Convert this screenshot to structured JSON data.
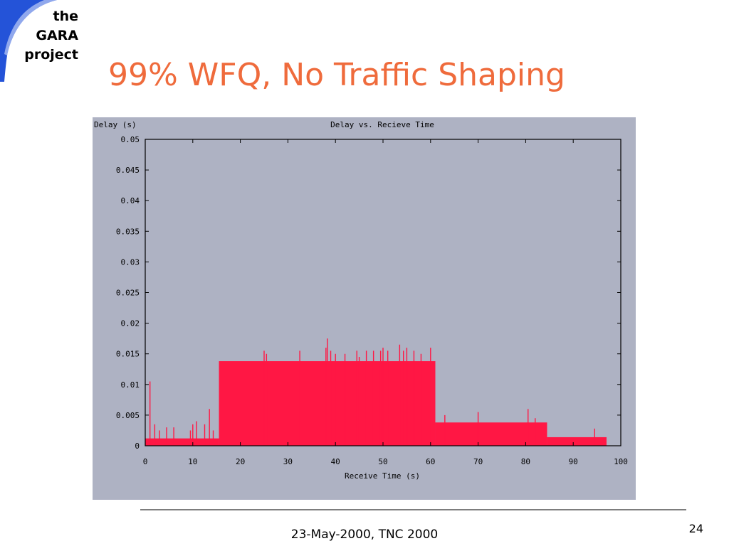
{
  "logo": {
    "line1": "the",
    "line2": "GARA",
    "line3": "project"
  },
  "slide": {
    "title": "99% WFQ, No Traffic Shaping"
  },
  "footer": {
    "text": "23-May-2000, TNC 2000",
    "page": "24"
  },
  "colors": {
    "title": "#ef6b3c",
    "panel": "#aeb2c3",
    "series": "#ff1744",
    "logo_swoosh": "#2453d8"
  },
  "chart_data": {
    "type": "area",
    "title": "Delay vs. Recieve Time",
    "xlabel": "Receive Time (s)",
    "ylabel": "Delay (s)",
    "xlim": [
      0,
      100
    ],
    "ylim": [
      0,
      0.05
    ],
    "xticks": [
      "0",
      "10",
      "20",
      "30",
      "40",
      "50",
      "60",
      "70",
      "80",
      "90",
      "100"
    ],
    "yticks": [
      "0",
      "0.005",
      "0.01",
      "0.015",
      "0.02",
      "0.025",
      "0.03",
      "0.035",
      "0.04",
      "0.045",
      "0.05"
    ],
    "grid": false,
    "series": [
      {
        "segments": [
          {
            "x": [
              0,
              15.5
            ],
            "delay": 0.0012
          },
          {
            "x": [
              15.5,
              61
            ],
            "delay": 0.0138
          },
          {
            "x": [
              61,
              84.5
            ],
            "delay": 0.0038
          },
          {
            "x": [
              84.5,
              97
            ],
            "delay": 0.0014
          }
        ],
        "spikes": [
          {
            "x": 1,
            "delay": 0.0105
          },
          {
            "x": 2,
            "delay": 0.0035
          },
          {
            "x": 3,
            "delay": 0.0025
          },
          {
            "x": 4.5,
            "delay": 0.003
          },
          {
            "x": 6,
            "delay": 0.003
          },
          {
            "x": 9.5,
            "delay": 0.0025
          },
          {
            "x": 10,
            "delay": 0.0035
          },
          {
            "x": 10.8,
            "delay": 0.004
          },
          {
            "x": 12.5,
            "delay": 0.0035
          },
          {
            "x": 13.5,
            "delay": 0.006
          },
          {
            "x": 14.3,
            "delay": 0.0025
          },
          {
            "x": 25,
            "delay": 0.0155
          },
          {
            "x": 25.5,
            "delay": 0.015
          },
          {
            "x": 32.5,
            "delay": 0.0155
          },
          {
            "x": 38,
            "delay": 0.016
          },
          {
            "x": 38.3,
            "delay": 0.0175
          },
          {
            "x": 39,
            "delay": 0.0155
          },
          {
            "x": 40,
            "delay": 0.015
          },
          {
            "x": 42,
            "delay": 0.015
          },
          {
            "x": 44.5,
            "delay": 0.0155
          },
          {
            "x": 45,
            "delay": 0.0145
          },
          {
            "x": 46.5,
            "delay": 0.0155
          },
          {
            "x": 48,
            "delay": 0.0155
          },
          {
            "x": 49.5,
            "delay": 0.0155
          },
          {
            "x": 50,
            "delay": 0.016
          },
          {
            "x": 51,
            "delay": 0.0155
          },
          {
            "x": 53.5,
            "delay": 0.0165
          },
          {
            "x": 54.3,
            "delay": 0.0155
          },
          {
            "x": 55,
            "delay": 0.016
          },
          {
            "x": 56.5,
            "delay": 0.0155
          },
          {
            "x": 58,
            "delay": 0.015
          },
          {
            "x": 60,
            "delay": 0.016
          },
          {
            "x": 63,
            "delay": 0.005
          },
          {
            "x": 70,
            "delay": 0.0055
          },
          {
            "x": 80.5,
            "delay": 0.006
          },
          {
            "x": 82,
            "delay": 0.0045
          },
          {
            "x": 94.5,
            "delay": 0.0028
          }
        ]
      }
    ],
    "secondary_band": {
      "color": "#c8c8c8",
      "x": [
        37.5,
        84.5
      ],
      "delay": 0.0006
    }
  }
}
